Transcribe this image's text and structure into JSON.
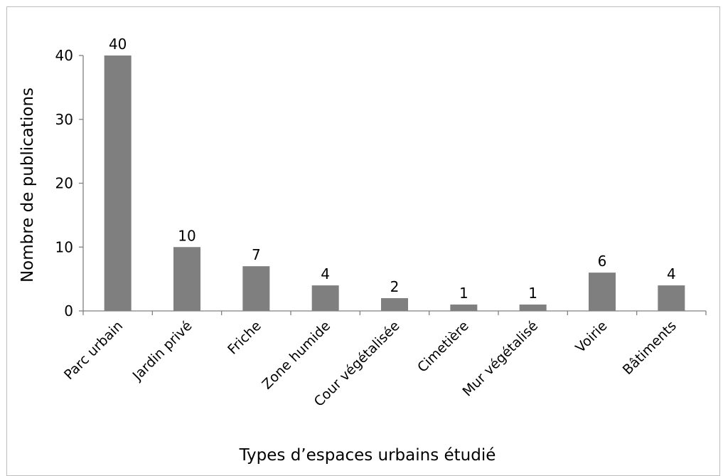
{
  "chart_data": {
    "type": "bar",
    "title": "",
    "xlabel": "Types d’espaces urbains étudié",
    "ylabel": "Nombre de publications",
    "categories": [
      "Parc urbain",
      "Jardin privé",
      "Friche",
      "Zone humide",
      "Cour végétalisée",
      "Cimetière",
      "Mur végétalisé",
      "Voirie",
      "Bâtiments"
    ],
    "values": [
      40,
      10,
      7,
      4,
      2,
      1,
      1,
      6,
      4
    ],
    "data_labels": [
      "40",
      "10",
      "7",
      "4",
      "2",
      "1",
      "1",
      "6",
      "4"
    ],
    "yticks": [
      "0",
      "10",
      "20",
      "30",
      "40"
    ],
    "ylim": [
      0,
      40
    ],
    "grid": false,
    "legend": "none",
    "bar_color": "#7f7f7f"
  }
}
